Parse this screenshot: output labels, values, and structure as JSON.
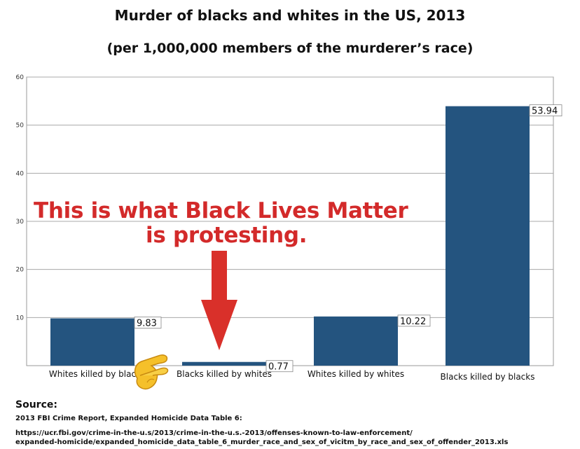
{
  "chart_data": {
    "type": "bar",
    "title": "Murder of blacks and whites in the US, 2013",
    "subtitle": "(per 1,000,000 members of the murderer’s race)",
    "categories": [
      "Whites killed by blacks",
      "Blacks killed by whites",
      "Whites killed by whites",
      "Blacks killed by blacks"
    ],
    "category_labels": [
      "Whites killed by blac",
      "Blacks killed by whites",
      "Whites killed by whites",
      "Blacks killed by blacks"
    ],
    "values": [
      9.83,
      0.77,
      10.22,
      53.94
    ],
    "data_labels": [
      "9.83",
      "0.77",
      "10.22",
      "53.94"
    ],
    "ylim": [
      0,
      60
    ],
    "yticks": [
      10,
      20,
      30,
      40,
      50,
      60
    ],
    "grid": true,
    "bar_color": "#24547f"
  },
  "annotation": {
    "line1": "This is what Black Lives Matter",
    "line2": "is protesting.",
    "color": "#d32a2a"
  },
  "pinch_icon": "pinching-hand-icon",
  "source": {
    "label": "Source:",
    "reference": "2013 FBI Crime Report, Expanded Homicide Data Table 6:",
    "url_line1": "https://ucr.fbi.gov/crime-in-the-u.s/2013/crime-in-the-u.s.-2013/offenses-known-to-law-enforcement/",
    "url_line2": "expanded-homicide/expanded_homicide_data_table_6_murder_race_and_sex_of_vicitm_by_race_and_sex_of_offender_2013.xls"
  }
}
